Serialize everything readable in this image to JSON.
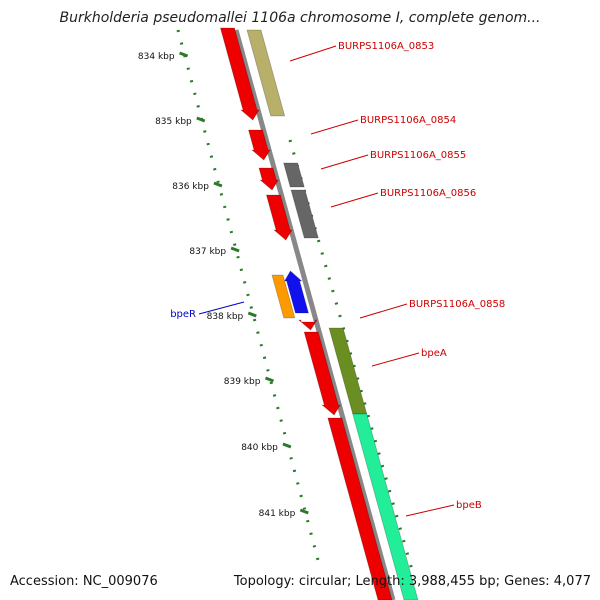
{
  "title": "Burkholderia pseudomallei 1106a chromosome I, complete genom...",
  "footer": {
    "accession": "Accession: NC_009076",
    "summary": "Topology: circular; Length: 3,988,455 bp; Genes: 4,077"
  },
  "ruler": {
    "ticks": [
      "834 kbp",
      "835 kbp",
      "836 kbp",
      "837 kbp",
      "838 kbp",
      "839 kbp",
      "840 kbp",
      "841 kbp"
    ]
  },
  "genes": [
    {
      "label": "BURPS1106A_0853",
      "color": "#b8b06a",
      "label_color": "#cc0000"
    },
    {
      "label": "BURPS1106A_0854",
      "color": "#ee0000",
      "label_color": "#cc0000"
    },
    {
      "label": "BURPS1106A_0855",
      "color": "#666666",
      "label_color": "#cc0000"
    },
    {
      "label": "BURPS1106A_0856",
      "color": "#666666",
      "label_color": "#cc0000"
    },
    {
      "label": "bpeR",
      "color": "#1111ee",
      "label_color": "#0000cc"
    },
    {
      "label": "BURPS1106A_0858",
      "color": "#ee0000",
      "label_color": "#cc0000"
    },
    {
      "label": "bpeA",
      "color": "#6b8e23",
      "label_color": "#cc0000"
    },
    {
      "label": "bpeB",
      "color": "#22ee99",
      "label_color": "#cc0000"
    }
  ],
  "colors": {
    "backbone": "#888888",
    "cds": "#ee0000",
    "tick": "#2a7a2a",
    "accent_orange": "#ff9900"
  }
}
